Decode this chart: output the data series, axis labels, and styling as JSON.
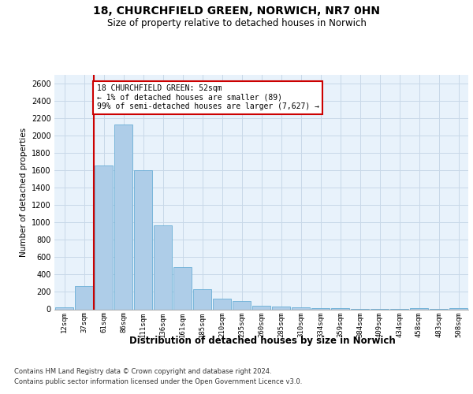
{
  "title1": "18, CHURCHFIELD GREEN, NORWICH, NR7 0HN",
  "title2": "Size of property relative to detached houses in Norwich",
  "xlabel": "Distribution of detached houses by size in Norwich",
  "ylabel": "Number of detached properties",
  "footer1": "Contains HM Land Registry data © Crown copyright and database right 2024.",
  "footer2": "Contains public sector information licensed under the Open Government Licence v3.0.",
  "bar_labels": [
    "12sqm",
    "37sqm",
    "61sqm",
    "86sqm",
    "111sqm",
    "136sqm",
    "161sqm",
    "185sqm",
    "210sqm",
    "235sqm",
    "260sqm",
    "285sqm",
    "310sqm",
    "334sqm",
    "359sqm",
    "384sqm",
    "409sqm",
    "434sqm",
    "458sqm",
    "483sqm",
    "508sqm"
  ],
  "bar_values": [
    20,
    270,
    1660,
    2130,
    1600,
    970,
    490,
    230,
    120,
    95,
    40,
    30,
    20,
    15,
    10,
    8,
    5,
    3,
    15,
    3,
    10
  ],
  "bar_color": "#aecde8",
  "bar_edge_color": "#6aaed6",
  "vline_x_idx": 1.5,
  "vline_color": "#cc0000",
  "annotation_line1": "18 CHURCHFIELD GREEN: 52sqm",
  "annotation_line2": "← 1% of detached houses are smaller (89)",
  "annotation_line3": "99% of semi-detached houses are larger (7,627) →",
  "ann_box_edgecolor": "#cc0000",
  "ylim": [
    0,
    2700
  ],
  "yticks": [
    0,
    200,
    400,
    600,
    800,
    1000,
    1200,
    1400,
    1600,
    1800,
    2000,
    2200,
    2400,
    2600
  ],
  "grid_color": "#c8d8e8",
  "background_color": "#e8f2fb",
  "title1_fontsize": 10,
  "title2_fontsize": 8.5,
  "ylabel_fontsize": 7.5,
  "xlabel_fontsize": 8.5,
  "tick_fontsize": 6.5,
  "ytick_fontsize": 7,
  "ann_fontsize": 7,
  "footer_fontsize": 6
}
